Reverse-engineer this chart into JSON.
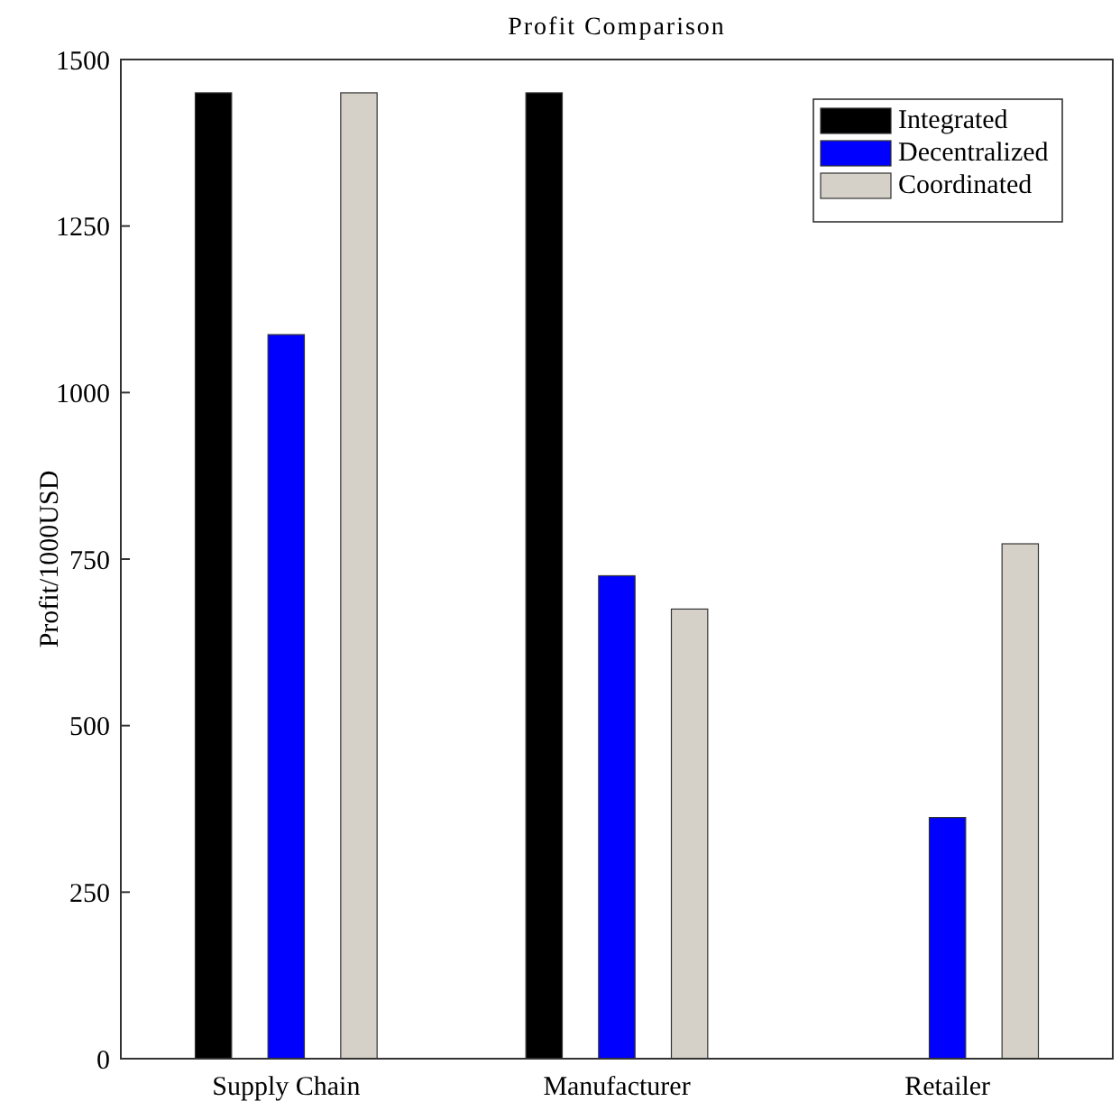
{
  "chart_data": {
    "type": "bar",
    "title": "Profit Comparison",
    "ylabel": "Profit/1000USD",
    "categories": [
      "Supply Chain",
      "Manufacturer",
      "Retailer"
    ],
    "series": [
      {
        "name": "Integrated",
        "color": "#000000",
        "values": [
          1450,
          1450,
          0
        ]
      },
      {
        "name": "Decentralized",
        "color": "#0000ff",
        "values": [
          1087,
          725,
          362
        ]
      },
      {
        "name": "Coordinated",
        "color": "#d5d0c8",
        "values": [
          1450,
          675,
          773
        ]
      }
    ],
    "ylim": [
      0,
      1500
    ],
    "yticks": [
      0,
      250,
      500,
      750,
      1000,
      1250,
      1500
    ],
    "grid": false,
    "legend": "top right"
  }
}
